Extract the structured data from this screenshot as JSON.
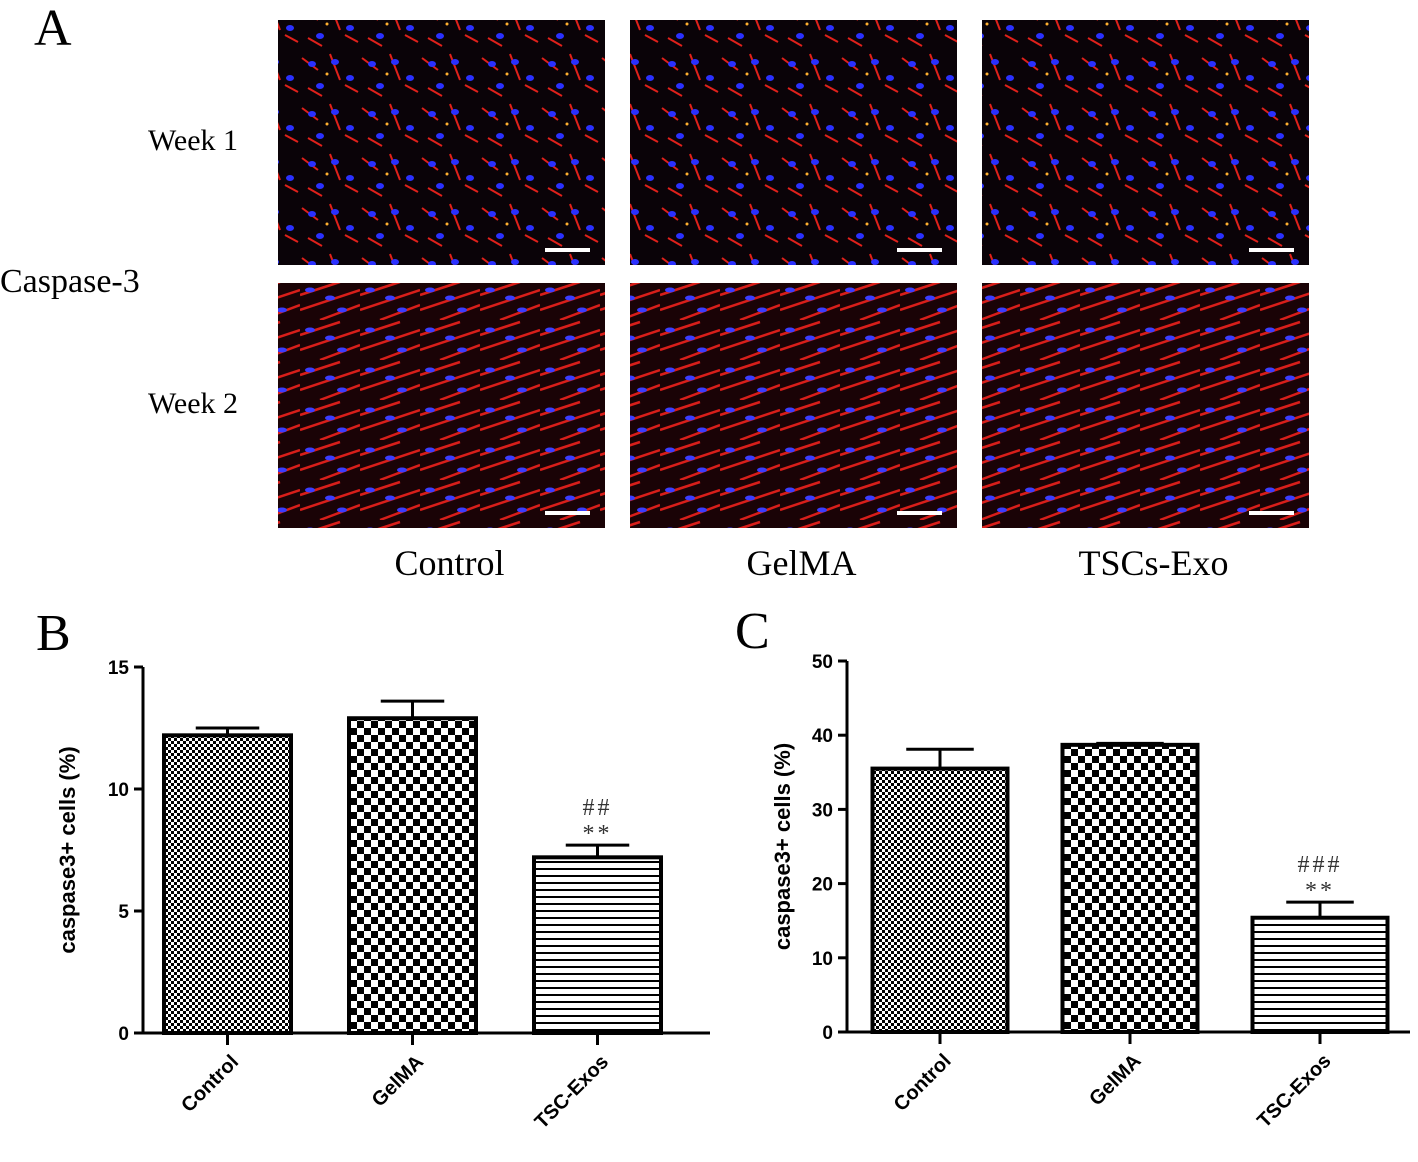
{
  "panel_a": {
    "label": "A",
    "row_label": "Caspase-3",
    "rows": [
      "Week 1",
      "Week 2"
    ],
    "columns": [
      "Control",
      "GelMA",
      "TSCs-Exo"
    ]
  },
  "chart_data": [
    {
      "type": "bar",
      "panel_label": "B",
      "ylabel": "caspase3+ cells (%)",
      "categories": [
        "Control",
        "GelMA",
        "TSC-Exos"
      ],
      "values": [
        12.2,
        12.9,
        7.2
      ],
      "errors": [
        0.3,
        0.7,
        0.5
      ],
      "annotations": [
        {
          "category": "TSC-Exos",
          "lines": [
            "##",
            "**"
          ]
        }
      ],
      "ylim": [
        0,
        15
      ],
      "yticks": [
        0,
        5,
        10,
        15
      ]
    },
    {
      "type": "bar",
      "panel_label": "C",
      "ylabel": "caspase3+ cells (%)",
      "categories": [
        "Control",
        "GelMA",
        "TSC-Exos"
      ],
      "values": [
        35.5,
        38.7,
        15.4
      ],
      "errors": [
        2.6,
        0.2,
        2.1
      ],
      "annotations": [
        {
          "category": "TSC-Exos",
          "lines": [
            "###",
            "**"
          ]
        }
      ],
      "ylim": [
        0,
        50
      ],
      "yticks": [
        0,
        10,
        20,
        30,
        40,
        50
      ]
    }
  ]
}
